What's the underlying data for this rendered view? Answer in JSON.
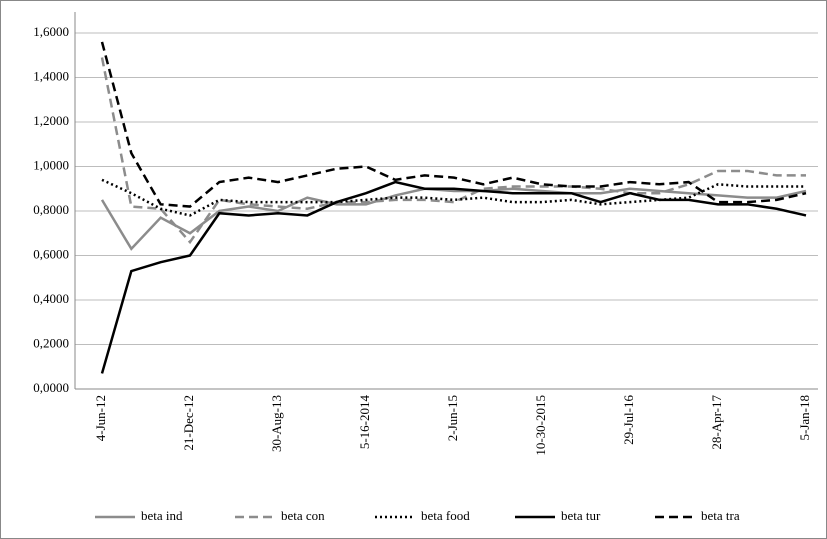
{
  "chart_data": {
    "type": "line",
    "categories": [
      "4-Jun-12",
      null,
      null,
      "21-Dec-12",
      null,
      null,
      "30-Aug-13",
      null,
      null,
      "5-16-2014",
      null,
      null,
      "2-Jun-15",
      null,
      null,
      "10-30-2015",
      null,
      null,
      "29-Jul-16",
      null,
      null,
      "28-Apr-17",
      null,
      null,
      "5-Jan-18"
    ],
    "series": [
      {
        "name": "beta ind",
        "color": "#8c8c8c",
        "line_style": "solid",
        "values": [
          0.85,
          0.63,
          0.77,
          0.7,
          0.8,
          0.82,
          0.8,
          0.86,
          0.83,
          0.83,
          0.87,
          0.9,
          0.89,
          0.89,
          0.9,
          0.89,
          0.88,
          0.88,
          0.9,
          0.89,
          0.88,
          0.87,
          0.86,
          0.86,
          0.89
        ]
      },
      {
        "name": "beta con",
        "color": "#8c8c8c",
        "line_style": "dashed",
        "values": [
          1.49,
          0.82,
          0.81,
          0.66,
          0.85,
          0.83,
          0.82,
          0.81,
          0.84,
          0.84,
          0.85,
          0.85,
          0.84,
          0.9,
          0.91,
          0.91,
          0.91,
          0.9,
          0.88,
          0.88,
          0.92,
          0.98,
          0.98,
          0.96,
          0.96
        ]
      },
      {
        "name": "beta food",
        "color": "#000000",
        "line_style": "dotted",
        "values": [
          0.94,
          0.88,
          0.81,
          0.78,
          0.85,
          0.84,
          0.84,
          0.84,
          0.84,
          0.85,
          0.86,
          0.86,
          0.85,
          0.86,
          0.84,
          0.84,
          0.85,
          0.83,
          0.84,
          0.85,
          0.86,
          0.92,
          0.91,
          0.91,
          0.91
        ]
      },
      {
        "name": "beta tur",
        "color": "#000000",
        "line_style": "solid",
        "values": [
          0.07,
          0.53,
          0.57,
          0.6,
          0.79,
          0.78,
          0.79,
          0.78,
          0.84,
          0.88,
          0.93,
          0.9,
          0.9,
          0.89,
          0.88,
          0.88,
          0.88,
          0.84,
          0.88,
          0.85,
          0.85,
          0.83,
          0.83,
          0.81,
          0.78
        ]
      },
      {
        "name": "beta tra",
        "color": "#000000",
        "line_style": "dashed",
        "values": [
          1.56,
          1.06,
          0.83,
          0.82,
          0.93,
          0.95,
          0.93,
          0.96,
          0.99,
          1.0,
          0.94,
          0.96,
          0.95,
          0.92,
          0.95,
          0.92,
          0.91,
          0.91,
          0.93,
          0.92,
          0.93,
          0.84,
          0.84,
          0.85,
          0.88
        ]
      }
    ],
    "ylim": [
      0,
      1.6
    ],
    "yticks": [
      {
        "value": 0,
        "label": "0,0000"
      },
      {
        "value": 0.2,
        "label": "0,2000"
      },
      {
        "value": 0.4,
        "label": "0,4000"
      },
      {
        "value": 0.6,
        "label": "0,6000"
      },
      {
        "value": 0.8,
        "label": "0,8000"
      },
      {
        "value": 1.0,
        "label": "1,0000"
      },
      {
        "value": 1.2,
        "label": "1,2000"
      },
      {
        "value": 1.4,
        "label": "1,4000"
      },
      {
        "value": 1.6,
        "label": "1,6000"
      }
    ],
    "grid": true,
    "legend": "bottom"
  }
}
